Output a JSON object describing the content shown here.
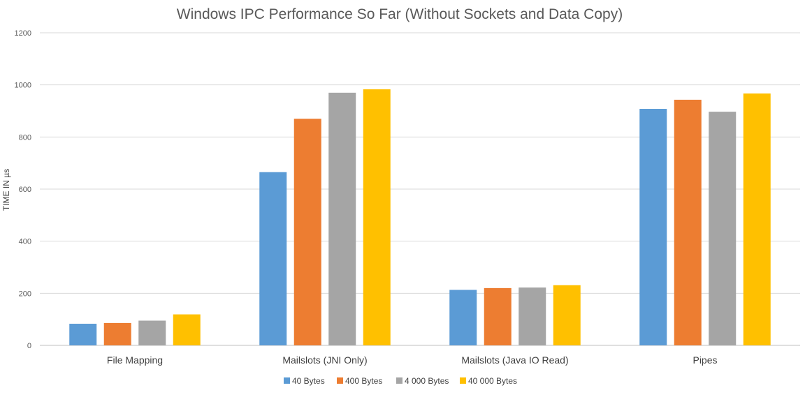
{
  "chart_data": {
    "type": "bar",
    "title": "Windows IPC Performance So Far (Without Sockets and Data Copy)",
    "xlabel": "",
    "ylabel": "TIME IN µs",
    "ylim": [
      0,
      1200
    ],
    "yticks": [
      0,
      200,
      400,
      600,
      800,
      1000,
      1200
    ],
    "grid": true,
    "legend_position": "bottom",
    "categories": [
      "File Mapping",
      "Mailslots (JNI Only)",
      "Mailslots (Java IO Read)",
      "Pipes"
    ],
    "series": [
      {
        "name": "40 Bytes",
        "color": "#5B9BD5",
        "values": [
          83,
          665,
          213,
          908
        ]
      },
      {
        "name": "400 Bytes",
        "color": "#ED7D31",
        "values": [
          86,
          870,
          220,
          943
        ]
      },
      {
        "name": "4 000 Bytes",
        "color": "#A5A5A5",
        "values": [
          95,
          970,
          222,
          897
        ]
      },
      {
        "name": "40 000 Bytes",
        "color": "#FFC000",
        "values": [
          119,
          983,
          231,
          967
        ]
      }
    ]
  }
}
